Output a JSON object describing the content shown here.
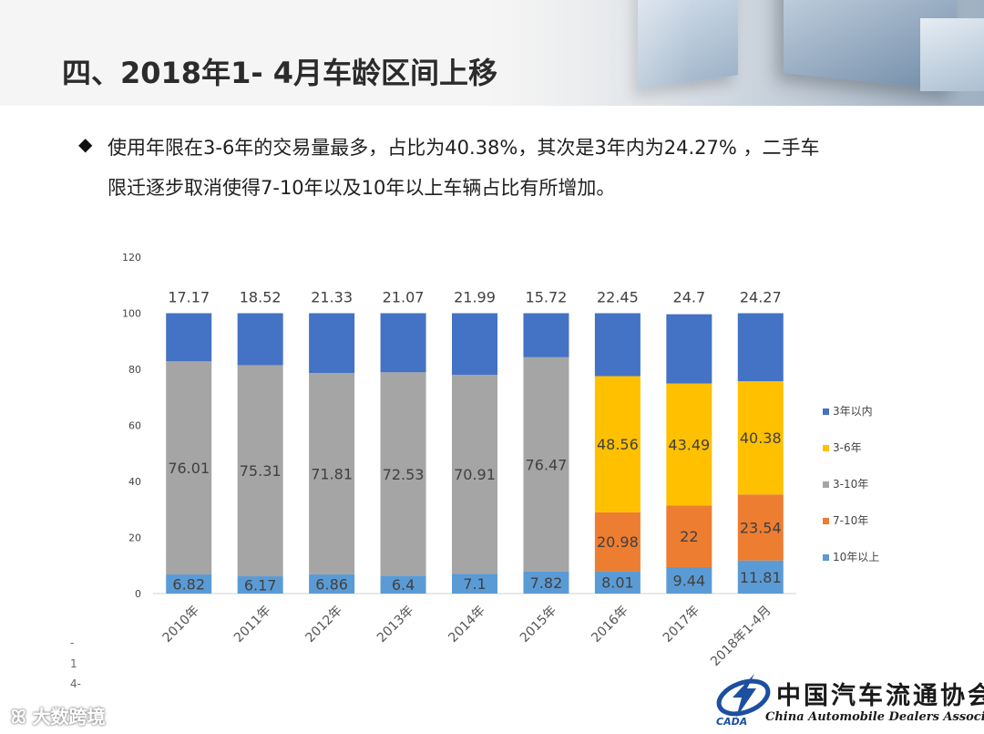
{
  "slide": {
    "title": "四、2018年1- 4月车龄区间上移",
    "bullet_symbol": "◆",
    "bullet_line1": "使用年限在3-6年的交易量最多，占比为40.38%，其次是3年内为24.27% ，二手车",
    "bullet_line2": "限迁逐步取消使得7-10年以及10年以上车辆占比有所增加。",
    "side_marks": [
      "-",
      "1",
      "4-"
    ],
    "watermark": "大数跨境",
    "logo_cn": "中国汽车流通协会",
    "logo_en": "China Automobile Dealers Association",
    "logo_abbr": "CADA"
  },
  "colors": {
    "3年以内": "#4472c4",
    "3-6年": "#ffc000",
    "3-10年": "#a5a5a5",
    "7-10年": "#ed7d31",
    "10年以上": "#5b9bd5"
  },
  "chart_data": {
    "type": "bar",
    "stacked": true,
    "categories": [
      "2010年",
      "2011年",
      "2012年",
      "2013年",
      "2014年",
      "2015年",
      "2016年",
      "2017年",
      "2018年1-4月"
    ],
    "ylim": [
      0,
      120
    ],
    "yticks": [
      0,
      20,
      40,
      60,
      80,
      100,
      120
    ],
    "legend_position": "right",
    "series": [
      {
        "name": "10年以上",
        "values": [
          6.82,
          6.17,
          6.86,
          6.4,
          7.1,
          7.82,
          8.01,
          9.44,
          11.81
        ],
        "labels": [
          "6.82",
          "6.17",
          "6.86",
          "6.4",
          "7.1",
          "7.82",
          "8.01",
          "9.44",
          "11.81"
        ]
      },
      {
        "name": "7-10年",
        "values": [
          null,
          null,
          null,
          null,
          null,
          null,
          20.98,
          22,
          23.54
        ],
        "labels": [
          null,
          null,
          null,
          null,
          null,
          null,
          "20.98",
          "22",
          "23.54"
        ]
      },
      {
        "name": "3-10年",
        "values": [
          76.01,
          75.31,
          71.81,
          72.53,
          70.91,
          76.47,
          null,
          null,
          null
        ],
        "labels": [
          "76.01",
          "75.31",
          "71.81",
          "72.53",
          "70.91",
          "76.47",
          null,
          null,
          null
        ]
      },
      {
        "name": "3-6年",
        "values": [
          null,
          null,
          null,
          null,
          null,
          null,
          48.56,
          43.49,
          40.38
        ],
        "labels": [
          null,
          null,
          null,
          null,
          null,
          null,
          "48.56",
          "43.49",
          "40.38"
        ]
      },
      {
        "name": "3年以内",
        "values": [
          17.17,
          18.52,
          21.33,
          21.07,
          21.99,
          15.72,
          22.45,
          24.7,
          24.27
        ],
        "labels": [
          "17.17",
          "18.52",
          "21.33",
          "21.07",
          "21.99",
          "15.72",
          "22.45",
          "24.7",
          "24.27"
        ]
      }
    ],
    "legend_order": [
      "3年以内",
      "3-6年",
      "3-10年",
      "7-10年",
      "10年以上"
    ]
  }
}
